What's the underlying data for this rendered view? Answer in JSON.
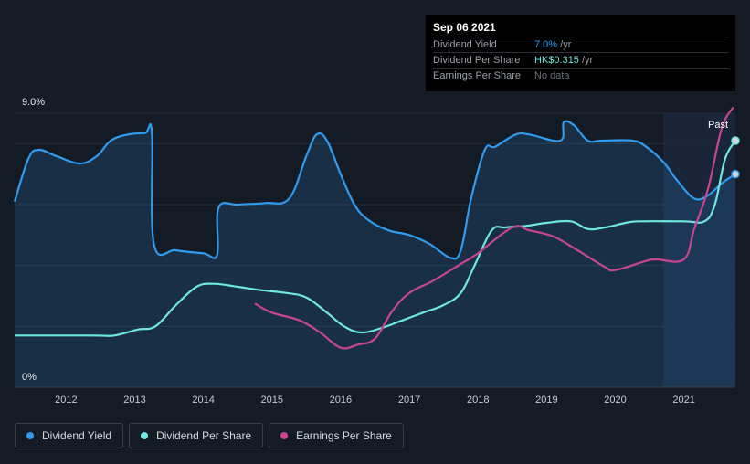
{
  "tooltip": {
    "date": "Sep 06 2021",
    "rows": [
      {
        "label": "Dividend Yield",
        "value": "7.0%",
        "unit": " /yr"
      },
      {
        "label": "Dividend Per Share",
        "value": "HK$0.315",
        "unit": " /yr"
      },
      {
        "label": "Earnings Per Share",
        "value": "No data",
        "unit": ""
      }
    ]
  },
  "legend": [
    {
      "label": "Dividend Yield",
      "color": "#2f9cf0"
    },
    {
      "label": "Dividend Per Share",
      "color": "#6ee7dc"
    },
    {
      "label": "Earnings Per Share",
      "color": "#c8468e"
    }
  ],
  "chart_data": {
    "type": "line",
    "y_top_label": "9.0%",
    "y_bottom_label": "0%",
    "ylim": [
      0,
      9
    ],
    "xlim": [
      2011.25,
      2021.75
    ],
    "x_ticks": [
      "2012",
      "2013",
      "2014",
      "2015",
      "2016",
      "2017",
      "2018",
      "2019",
      "2020",
      "2021"
    ],
    "past_label": "Past",
    "past_start": 2020.7,
    "series": [
      {
        "name": "Dividend Yield",
        "color": "#2f9cf0",
        "points": [
          [
            2011.25,
            6.1
          ],
          [
            2011.45,
            7.5
          ],
          [
            2011.6,
            7.8
          ],
          [
            2011.85,
            7.6
          ],
          [
            2012.2,
            7.35
          ],
          [
            2012.45,
            7.6
          ],
          [
            2012.65,
            8.1
          ],
          [
            2012.9,
            8.3
          ],
          [
            2013.15,
            8.35
          ],
          [
            2013.25,
            8.35
          ],
          [
            2013.28,
            4.7
          ],
          [
            2013.6,
            4.5
          ],
          [
            2014.0,
            4.4
          ],
          [
            2014.2,
            4.35
          ],
          [
            2014.22,
            5.9
          ],
          [
            2014.5,
            6.0
          ],
          [
            2014.9,
            6.05
          ],
          [
            2015.25,
            6.2
          ],
          [
            2015.5,
            7.6
          ],
          [
            2015.65,
            8.3
          ],
          [
            2015.8,
            8.1
          ],
          [
            2016.0,
            7.0
          ],
          [
            2016.2,
            6.0
          ],
          [
            2016.4,
            5.5
          ],
          [
            2016.7,
            5.15
          ],
          [
            2017.0,
            5.0
          ],
          [
            2017.3,
            4.7
          ],
          [
            2017.6,
            4.25
          ],
          [
            2017.75,
            4.5
          ],
          [
            2017.9,
            6.2
          ],
          [
            2018.1,
            7.8
          ],
          [
            2018.25,
            7.9
          ],
          [
            2018.55,
            8.3
          ],
          [
            2018.75,
            8.3
          ],
          [
            2019.2,
            8.1
          ],
          [
            2019.25,
            8.7
          ],
          [
            2019.4,
            8.6
          ],
          [
            2019.6,
            8.1
          ],
          [
            2019.8,
            8.1
          ],
          [
            2020.25,
            8.1
          ],
          [
            2020.45,
            7.9
          ],
          [
            2020.7,
            7.4
          ],
          [
            2020.9,
            6.8
          ],
          [
            2021.15,
            6.2
          ],
          [
            2021.35,
            6.3
          ],
          [
            2021.55,
            6.7
          ],
          [
            2021.75,
            7.0
          ]
        ]
      },
      {
        "name": "Dividend Per Share",
        "color": "#6ee7dc",
        "points": [
          [
            2011.25,
            1.7
          ],
          [
            2012.4,
            1.7
          ],
          [
            2012.7,
            1.7
          ],
          [
            2013.05,
            1.9
          ],
          [
            2013.3,
            2.0
          ],
          [
            2013.6,
            2.7
          ],
          [
            2013.9,
            3.3
          ],
          [
            2014.15,
            3.4
          ],
          [
            2014.5,
            3.3
          ],
          [
            2014.8,
            3.2
          ],
          [
            2015.2,
            3.1
          ],
          [
            2015.5,
            2.95
          ],
          [
            2015.8,
            2.45
          ],
          [
            2016.05,
            2.0
          ],
          [
            2016.3,
            1.8
          ],
          [
            2016.6,
            1.95
          ],
          [
            2016.9,
            2.2
          ],
          [
            2017.2,
            2.45
          ],
          [
            2017.5,
            2.7
          ],
          [
            2017.75,
            3.1
          ],
          [
            2017.95,
            4.0
          ],
          [
            2018.2,
            5.15
          ],
          [
            2018.4,
            5.25
          ],
          [
            2018.7,
            5.3
          ],
          [
            2019.0,
            5.4
          ],
          [
            2019.35,
            5.45
          ],
          [
            2019.6,
            5.2
          ],
          [
            2019.85,
            5.25
          ],
          [
            2020.15,
            5.4
          ],
          [
            2020.35,
            5.45
          ],
          [
            2021.0,
            5.45
          ],
          [
            2021.3,
            5.45
          ],
          [
            2021.45,
            6.0
          ],
          [
            2021.6,
            7.5
          ],
          [
            2021.75,
            8.1
          ]
        ]
      },
      {
        "name": "Earnings Per Share",
        "color": "#c8468e",
        "points": [
          [
            2014.75,
            2.75
          ],
          [
            2015.0,
            2.45
          ],
          [
            2015.4,
            2.2
          ],
          [
            2015.7,
            1.8
          ],
          [
            2016.0,
            1.3
          ],
          [
            2016.25,
            1.4
          ],
          [
            2016.5,
            1.6
          ],
          [
            2016.75,
            2.5
          ],
          [
            2017.0,
            3.1
          ],
          [
            2017.35,
            3.5
          ],
          [
            2017.75,
            4.05
          ],
          [
            2018.0,
            4.4
          ],
          [
            2018.5,
            5.25
          ],
          [
            2018.75,
            5.15
          ],
          [
            2019.1,
            4.95
          ],
          [
            2019.45,
            4.5
          ],
          [
            2019.85,
            3.95
          ],
          [
            2020.0,
            3.85
          ],
          [
            2020.45,
            4.15
          ],
          [
            2020.6,
            4.2
          ],
          [
            2021.0,
            4.2
          ],
          [
            2021.15,
            5.2
          ],
          [
            2021.35,
            6.5
          ],
          [
            2021.55,
            8.5
          ],
          [
            2021.72,
            9.2
          ]
        ]
      }
    ],
    "end_markers": [
      {
        "series": "Dividend Yield",
        "value": 7.0
      },
      {
        "series": "Dividend Per Share",
        "value": 8.1
      }
    ]
  }
}
